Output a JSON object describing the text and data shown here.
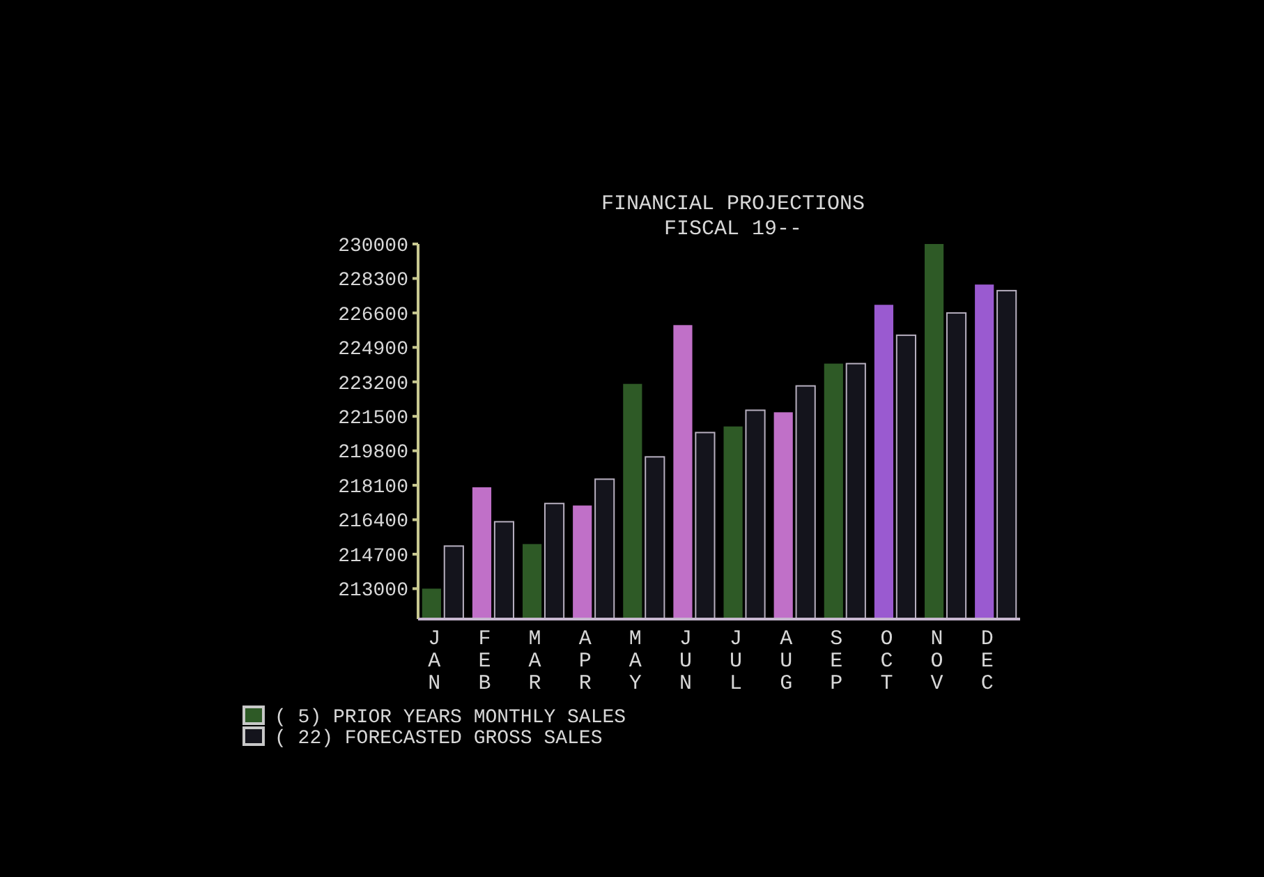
{
  "chart_data": {
    "type": "bar",
    "title": "FINANCIAL PROJECTIONS",
    "subtitle": "FISCAL 19--",
    "categories": [
      "JAN",
      "FEB",
      "MAR",
      "APR",
      "MAY",
      "JUN",
      "JUL",
      "AUG",
      "SEP",
      "OCT",
      "NOV",
      "DEC"
    ],
    "series": [
      {
        "name": "( 5) PRIOR YEARS MONTHLY SALES",
        "color": "#2e5a26",
        "colors": [
          "#2e5a26",
          "#c070c8",
          "#2e5a26",
          "#c070c8",
          "#2e5a26",
          "#c070c8",
          "#2e5a26",
          "#c070c8",
          "#2e5a26",
          "#9a5ad0",
          "#2e5a26",
          "#9a5ad0"
        ],
        "values": [
          213000,
          218000,
          215200,
          217100,
          223100,
          226000,
          221000,
          221700,
          224100,
          227000,
          230000,
          228000
        ]
      },
      {
        "name": "( 22) FORECASTED GROSS SALES",
        "color": "#14141c",
        "values": [
          215100,
          216300,
          217200,
          218400,
          219500,
          220700,
          221800,
          223000,
          224100,
          225500,
          226600,
          227700
        ]
      }
    ],
    "ylim": [
      211500,
      230000
    ],
    "yticks": [
      213000,
      214700,
      216400,
      218100,
      219800,
      221500,
      223200,
      224900,
      226600,
      228300,
      230000
    ],
    "grid": false,
    "legend": "bottom left"
  }
}
